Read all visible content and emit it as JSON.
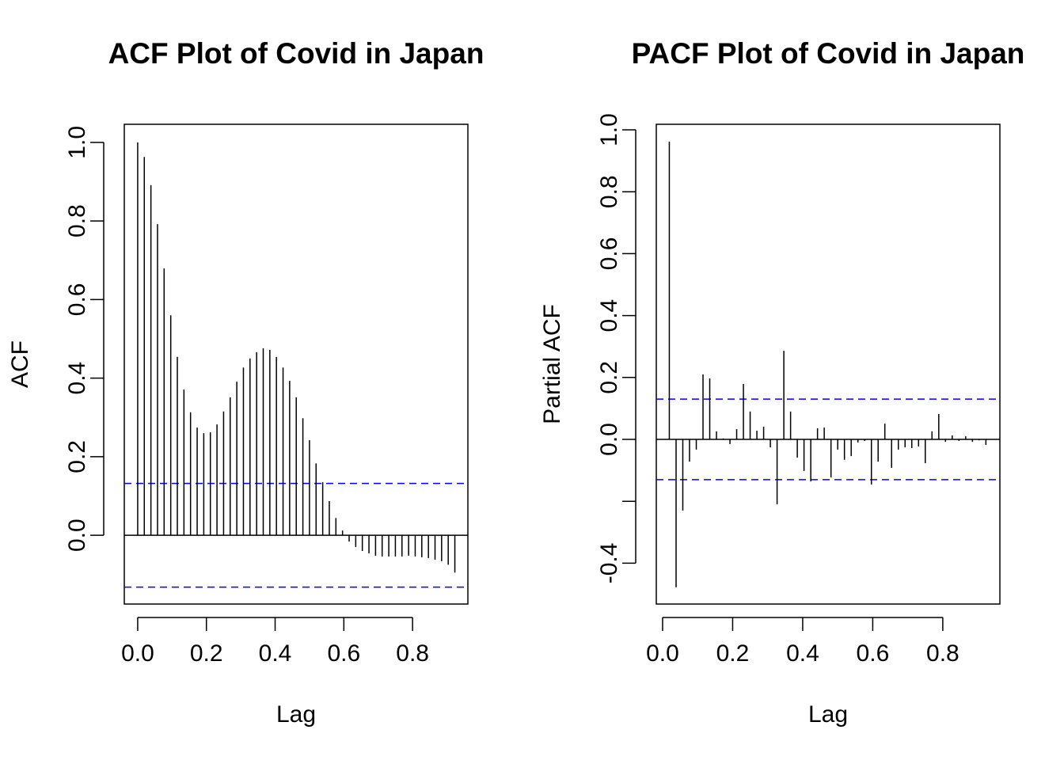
{
  "chart_data": [
    {
      "type": "acf",
      "title": "ACF Plot of Covid in Japan",
      "xlabel": "Lag",
      "ylabel": "ACF",
      "x": [
        0,
        0.0192,
        0.0385,
        0.0577,
        0.0769,
        0.0962,
        0.1154,
        0.1346,
        0.1538,
        0.1731,
        0.1923,
        0.2115,
        0.2308,
        0.25,
        0.2692,
        0.2885,
        0.3077,
        0.3269,
        0.3462,
        0.3654,
        0.3846,
        0.4038,
        0.4231,
        0.4423,
        0.4615,
        0.4808,
        0.5,
        0.5192,
        0.5385,
        0.5577,
        0.5769,
        0.5962,
        0.6154,
        0.6346,
        0.6538,
        0.6731,
        0.6923,
        0.7115,
        0.7308,
        0.75,
        0.7692,
        0.7885,
        0.8077,
        0.8269,
        0.8462,
        0.8654,
        0.8846,
        0.9038,
        0.9231
      ],
      "values": [
        1.0,
        0.963,
        0.891,
        0.792,
        0.679,
        0.56,
        0.454,
        0.371,
        0.313,
        0.274,
        0.26,
        0.262,
        0.282,
        0.315,
        0.351,
        0.391,
        0.427,
        0.45,
        0.466,
        0.476,
        0.472,
        0.454,
        0.427,
        0.393,
        0.351,
        0.298,
        0.242,
        0.183,
        0.135,
        0.087,
        0.044,
        0.012,
        -0.016,
        -0.03,
        -0.04,
        -0.046,
        -0.052,
        -0.054,
        -0.054,
        -0.054,
        -0.054,
        -0.052,
        -0.054,
        -0.056,
        -0.058,
        -0.062,
        -0.066,
        -0.075,
        -0.095
      ],
      "color": "#000000",
      "conf_limits": [
        0.132,
        -0.132
      ],
      "conf_color": "#0000ff",
      "xlim": [
        -0.039,
        0.961
      ],
      "ylim": [
        -0.175,
        1.046
      ],
      "xticks": [
        {
          "value": 0,
          "label": "0.0"
        },
        0.2,
        0.4,
        0.6,
        0.8
      ],
      "yticks": [
        {
          "value": 0,
          "label": "0.0"
        },
        0.2,
        0.4,
        0.6,
        0.8,
        {
          "value": 1,
          "label": "1.0"
        }
      ]
    },
    {
      "type": "acf",
      "title": "PACF Plot of Covid in Japan",
      "xlabel": "Lag",
      "ylabel": "Partial ACF",
      "x": [
        0.0192,
        0.0385,
        0.0577,
        0.0769,
        0.0962,
        0.1154,
        0.1346,
        0.1538,
        0.1731,
        0.1923,
        0.2115,
        0.2308,
        0.25,
        0.2692,
        0.2885,
        0.3077,
        0.3269,
        0.3462,
        0.3654,
        0.3846,
        0.4038,
        0.4231,
        0.4423,
        0.4615,
        0.4808,
        0.5,
        0.5192,
        0.5385,
        0.5577,
        0.5769,
        0.5962,
        0.6154,
        0.6346,
        0.6538,
        0.6731,
        0.6923,
        0.7115,
        0.7308,
        0.75,
        0.7692,
        0.7885,
        0.8077,
        0.8269,
        0.8462,
        0.8654,
        0.8846,
        0.9038,
        0.9231
      ],
      "values": [
        0.962,
        -0.478,
        -0.23,
        -0.072,
        -0.033,
        0.21,
        0.197,
        0.026,
        0.003,
        -0.015,
        0.033,
        0.179,
        0.09,
        0.028,
        0.041,
        -0.026,
        -0.21,
        0.286,
        0.09,
        -0.059,
        -0.102,
        -0.136,
        0.036,
        0.038,
        -0.123,
        -0.033,
        -0.066,
        -0.054,
        -0.01,
        -0.005,
        -0.146,
        -0.072,
        0.051,
        -0.092,
        -0.033,
        -0.026,
        -0.028,
        -0.023,
        -0.077,
        0.026,
        0.082,
        -0.008,
        0.013,
        -0.005,
        0.01,
        -0.008,
        -0.003,
        -0.018
      ],
      "color": "#000000",
      "conf_limits": [
        0.13,
        -0.13
      ],
      "conf_color": "#0000ff",
      "xlim": [
        -0.018,
        0.963
      ],
      "ylim": [
        -0.532,
        1.018
      ],
      "xticks": [
        {
          "value": 0,
          "label": "0.0"
        },
        0.2,
        0.4,
        0.6,
        0.8
      ],
      "yticks": [
        -0.4,
        {
          "value": -0.2,
          "label": null
        },
        {
          "value": 0,
          "label": "0.0"
        },
        0.2,
        0.4,
        0.6,
        0.8,
        {
          "value": 1,
          "label": "1.0"
        }
      ]
    }
  ]
}
